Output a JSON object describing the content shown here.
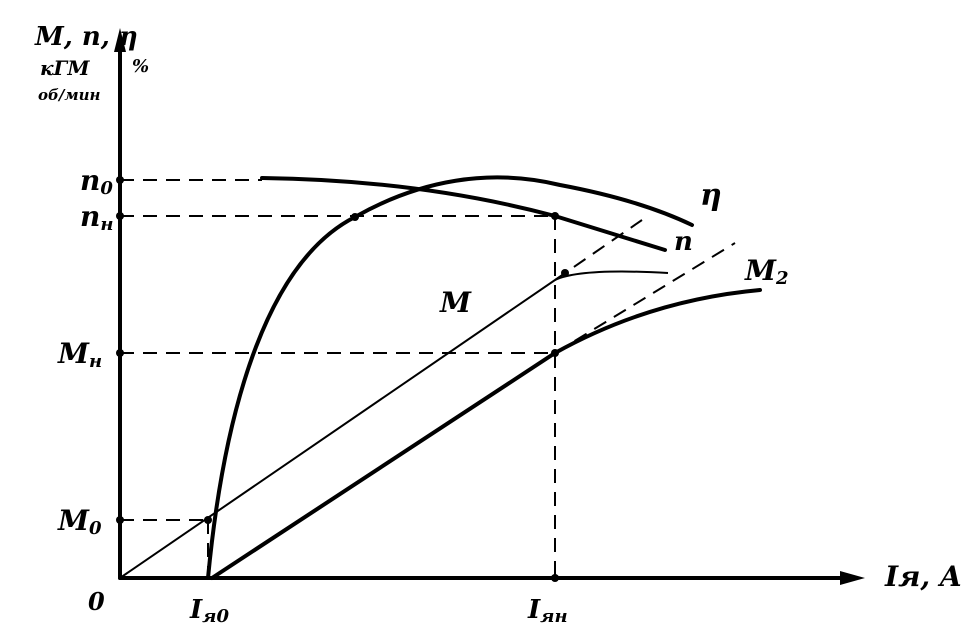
{
  "y_axis": {
    "label": "M, n, η",
    "units_top": "кГМ",
    "units_bottom": "об/мин",
    "eta_unit": "%"
  },
  "x_axis": {
    "label": "Iя, A",
    "origin": "0",
    "ticks": [
      {
        "main": "I",
        "sub": "я0"
      },
      {
        "main": "I",
        "sub": "ян"
      }
    ]
  },
  "y_ticks": [
    {
      "main": "n",
      "sub": "0"
    },
    {
      "main": "n",
      "sub": "н"
    },
    {
      "main": "M",
      "sub": "н"
    },
    {
      "main": "M",
      "sub": "0"
    }
  ],
  "curves": {
    "eta": "η",
    "n": "n",
    "m": "M",
    "m2": {
      "main": "M",
      "sub": "2"
    }
  }
}
